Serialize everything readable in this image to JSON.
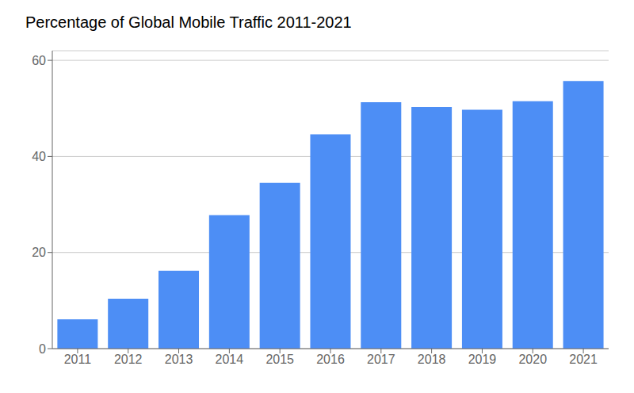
{
  "chart_data": {
    "type": "bar",
    "title": "Percentage of Global Mobile Traffic 2011-2021",
    "categories": [
      "2011",
      "2012",
      "2013",
      "2014",
      "2015",
      "2016",
      "2017",
      "2018",
      "2019",
      "2020",
      "2021"
    ],
    "values": [
      6.1,
      10.4,
      16.2,
      27.8,
      34.5,
      44.6,
      51.3,
      50.3,
      49.7,
      51.5,
      55.7
    ],
    "color": "#4d8ef5",
    "ylim": [
      0,
      62
    ],
    "yticks": [
      0,
      20,
      40,
      60
    ],
    "grid": true
  }
}
